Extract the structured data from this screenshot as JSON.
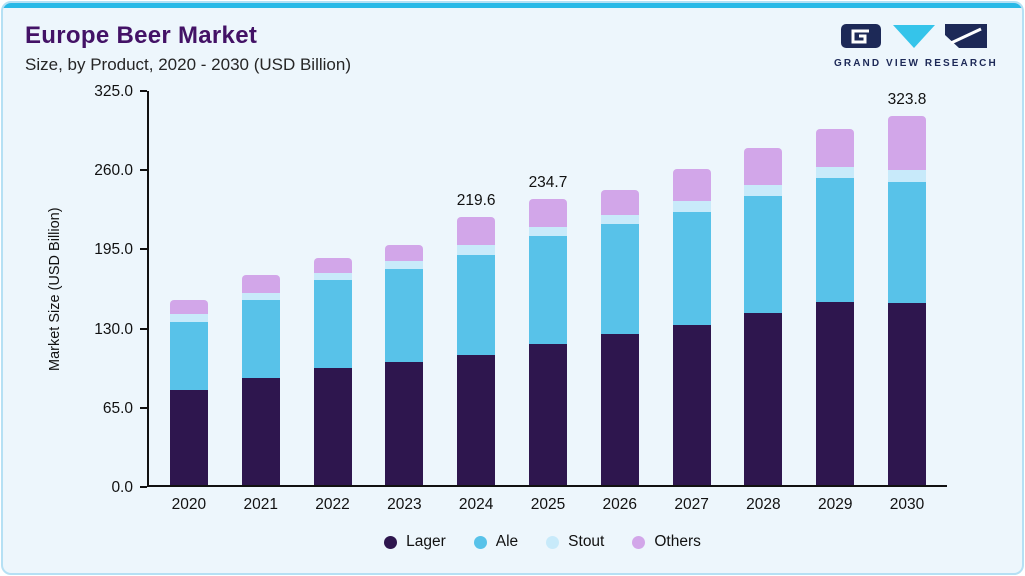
{
  "header": {
    "title": "Europe Beer Market",
    "subtitle": "Size, by Product, 2020 - 2030 (USD Billion)",
    "logo_text": "GRAND VIEW RESEARCH"
  },
  "colors": {
    "accent_bar": "#29b9e7",
    "card_background": "#edf6fc",
    "card_border": "#b5e0f4",
    "title": "#431266",
    "logo_navy": "#1d2957",
    "logo_cyan": "#35c4ea"
  },
  "chart_data": {
    "type": "bar",
    "stacked": true,
    "title": "Europe Beer Market Size, by Product, 2020 - 2030 (USD Billion)",
    "xlabel": "",
    "ylabel": "Market Size (USD Billion)",
    "ylim": [
      0,
      325
    ],
    "yticks": [
      0,
      65,
      130,
      195,
      260,
      325
    ],
    "grid": false,
    "legend_position": "bottom",
    "categories": [
      "2020",
      "2021",
      "2022",
      "2023",
      "2024",
      "2025",
      "2026",
      "2027",
      "2028",
      "2029",
      "2030"
    ],
    "series": [
      {
        "name": "Lager",
        "color": "#2e164e",
        "values": [
          78,
          88,
          96,
          101,
          107,
          116,
          124,
          131,
          141,
          150,
          160
        ]
      },
      {
        "name": "Ale",
        "color": "#58c2e9",
        "values": [
          56,
          64,
          72,
          76,
          82,
          88,
          90,
          93,
          96,
          102,
          106
        ]
      },
      {
        "name": "Stout",
        "color": "#c8eafa",
        "values": [
          6,
          6,
          6,
          7,
          8,
          8,
          8,
          9,
          9,
          9,
          10
        ]
      },
      {
        "name": "Others",
        "color": "#d2a6e9",
        "values": [
          12,
          14,
          12,
          13,
          22.6,
          22.7,
          20,
          26,
          31,
          31,
          47.8
        ]
      }
    ],
    "totals": [
      152,
      172,
      186,
      197,
      219.6,
      234.7,
      242,
      259,
      277,
      292,
      323.8
    ],
    "total_labels": {
      "2024": "219.6",
      "2025": "234.7",
      "2030": "323.8"
    }
  }
}
